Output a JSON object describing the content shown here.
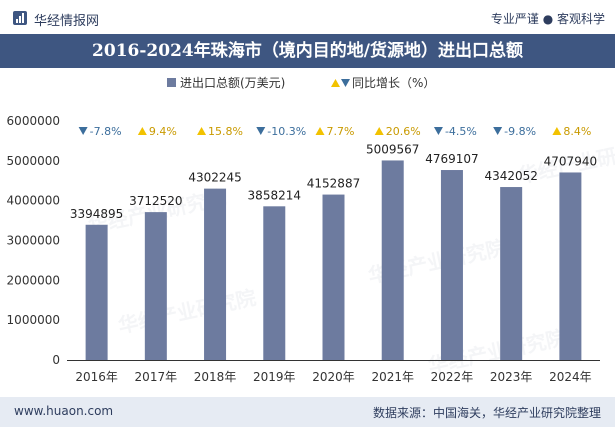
{
  "header": {
    "brand": "华经情报网",
    "tags": [
      "专业严谨",
      "客观科学"
    ]
  },
  "chart_data": {
    "type": "bar",
    "title": "2016-2024年珠海市（境内目的地/货源地）进出口总额",
    "categories": [
      "2016年",
      "2017年",
      "2018年",
      "2019年",
      "2020年",
      "2021年",
      "2022年",
      "2023年",
      "2024年"
    ],
    "series": [
      {
        "name": "进出口总额(万美元)",
        "values": [
          3394895,
          3712520,
          4302245,
          3858214,
          4152887,
          5009567,
          4769107,
          4342052,
          4707940
        ]
      },
      {
        "name": "同比增长（%）",
        "values": [
          -7.8,
          9.4,
          15.8,
          -10.3,
          7.7,
          20.6,
          -4.5,
          -9.8,
          8.4
        ]
      }
    ],
    "value_labels": [
      "3394895",
      "3712520",
      "4302245",
      "3858214",
      "4152887",
      "5009567",
      "4769107",
      "4342052",
      "4707940"
    ],
    "growth_labels": [
      "-7.8%",
      "9.4%",
      "15.8%",
      "-10.3%",
      "7.7%",
      "20.6%",
      "-4.5%",
      "-9.8%",
      "8.4%"
    ],
    "ylim": [
      0,
      6000000
    ],
    "yticks": [
      "0",
      "1000000",
      "2000000",
      "3000000",
      "4000000",
      "5000000",
      "6000000"
    ],
    "legend": [
      {
        "label": "进出口总额(万美元)",
        "marker": "square"
      },
      {
        "label": "同比增长（%）",
        "marker": "triangles"
      }
    ],
    "colors": {
      "bar": "#6d7b9f",
      "up": "#f2c200",
      "down": "#3c6e9c",
      "axis": "#333333"
    }
  },
  "watermark": "华经产业研究院",
  "footer": {
    "website": "www.huaon.com",
    "source": "数据来源：中国海关，华经产业研究院整理"
  }
}
